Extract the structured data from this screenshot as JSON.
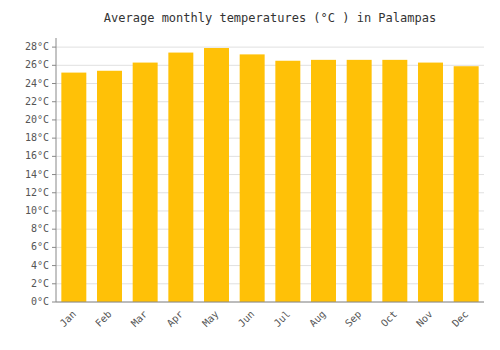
{
  "chart_data": {
    "type": "bar",
    "title": "Average monthly temperatures (°C ) in Palampas",
    "categories": [
      "Jan",
      "Feb",
      "Mar",
      "Apr",
      "May",
      "Jun",
      "Jul",
      "Aug",
      "Sep",
      "Oct",
      "Nov",
      "Dec"
    ],
    "values": [
      25.2,
      25.4,
      26.3,
      27.4,
      27.9,
      27.2,
      26.5,
      26.6,
      26.6,
      26.6,
      26.3,
      25.9
    ],
    "color": "#FFC107",
    "ylim": [
      0,
      29
    ],
    "yticks": [
      {
        "value": 0,
        "label": "0°C"
      },
      {
        "value": 2,
        "label": "2°C"
      },
      {
        "value": 4,
        "label": "4°C"
      },
      {
        "value": 6,
        "label": "6°C"
      },
      {
        "value": 8,
        "label": "8°C"
      },
      {
        "value": 10,
        "label": "10°C"
      },
      {
        "value": 12,
        "label": "12°C"
      },
      {
        "value": 14,
        "label": "14°C"
      },
      {
        "value": 16,
        "label": "16°C"
      },
      {
        "value": 18,
        "label": "18°C"
      },
      {
        "value": 20,
        "label": "20°C"
      },
      {
        "value": 22,
        "label": "22°C"
      },
      {
        "value": 24,
        "label": "24°C"
      },
      {
        "value": 26,
        "label": "26°C"
      },
      {
        "value": 28,
        "label": "28°C"
      }
    ],
    "grid": true
  }
}
